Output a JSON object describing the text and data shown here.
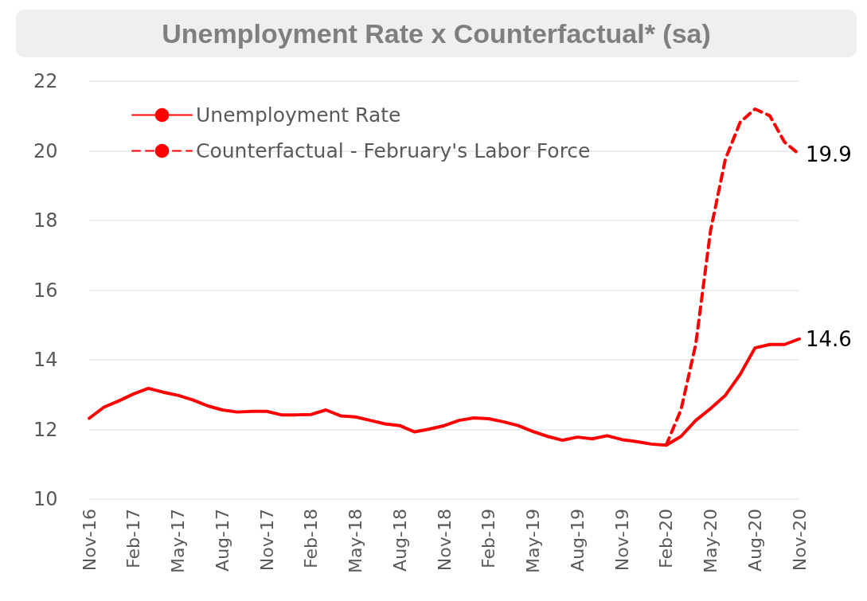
{
  "chart_data": {
    "type": "line",
    "title": "Unemployment Rate x Counterfactual* (sa)",
    "categories": [
      "Nov-16",
      null,
      null,
      "Feb-17",
      null,
      null,
      "May-17",
      null,
      null,
      "Aug-17",
      null,
      null,
      "Nov-17",
      null,
      null,
      "Feb-18",
      null,
      null,
      "May-18",
      null,
      null,
      "Aug-18",
      null,
      null,
      "Nov-18",
      null,
      null,
      "Feb-19",
      null,
      null,
      "May-19",
      null,
      null,
      "Aug-19",
      null,
      null,
      "Nov-19",
      null,
      null,
      "Feb-20",
      null,
      null,
      "May-20",
      null,
      null,
      "Aug-20",
      null,
      null,
      "Nov-20"
    ],
    "series": [
      {
        "name": "Unemployment Rate",
        "color": "#ff0000",
        "line_style": "solid",
        "values": [
          12.32,
          12.64,
          12.82,
          13.02,
          13.18,
          13.07,
          12.98,
          12.85,
          12.68,
          12.56,
          12.5,
          12.52,
          12.52,
          12.42,
          12.42,
          12.43,
          12.56,
          12.39,
          12.36,
          12.26,
          12.16,
          12.11,
          11.93,
          12.01,
          12.11,
          12.26,
          12.33,
          12.31,
          12.22,
          12.11,
          11.94,
          11.8,
          11.69,
          11.78,
          11.73,
          11.82,
          11.71,
          11.65,
          11.58,
          11.55,
          11.8,
          12.26,
          12.6,
          12.98,
          13.58,
          14.34,
          14.44,
          14.44,
          14.6
        ],
        "value_labels": [
          null,
          null,
          null,
          null,
          null,
          null,
          null,
          null,
          null,
          null,
          null,
          null,
          null,
          null,
          null,
          null,
          null,
          null,
          null,
          null,
          null,
          null,
          null,
          null,
          null,
          null,
          null,
          null,
          null,
          null,
          null,
          null,
          null,
          null,
          null,
          null,
          null,
          null,
          null,
          null,
          null,
          null,
          null,
          null,
          null,
          null,
          null,
          null,
          "14.6"
        ]
      },
      {
        "name": "Counterfactual - February's Labor Force",
        "color": "#ff0000",
        "line_style": "dashed",
        "values": [
          null,
          null,
          null,
          null,
          null,
          null,
          null,
          null,
          null,
          null,
          null,
          null,
          null,
          null,
          null,
          null,
          null,
          null,
          null,
          null,
          null,
          null,
          null,
          null,
          null,
          null,
          null,
          null,
          null,
          null,
          null,
          null,
          null,
          null,
          null,
          null,
          null,
          null,
          null,
          11.55,
          12.56,
          14.45,
          17.71,
          19.76,
          20.82,
          21.2,
          21.01,
          20.25,
          19.9
        ],
        "value_labels": [
          null,
          null,
          null,
          null,
          null,
          null,
          null,
          null,
          null,
          null,
          null,
          null,
          null,
          null,
          null,
          null,
          null,
          null,
          null,
          null,
          null,
          null,
          null,
          null,
          null,
          null,
          null,
          null,
          null,
          null,
          null,
          null,
          null,
          null,
          null,
          null,
          null,
          null,
          null,
          null,
          null,
          null,
          null,
          null,
          null,
          null,
          null,
          null,
          "19.9"
        ]
      }
    ],
    "ylim": [
      10,
      22
    ],
    "yticks": [
      10,
      12,
      14,
      16,
      18,
      20,
      22
    ],
    "grid": "y",
    "legend": "top left",
    "marker": "none"
  }
}
